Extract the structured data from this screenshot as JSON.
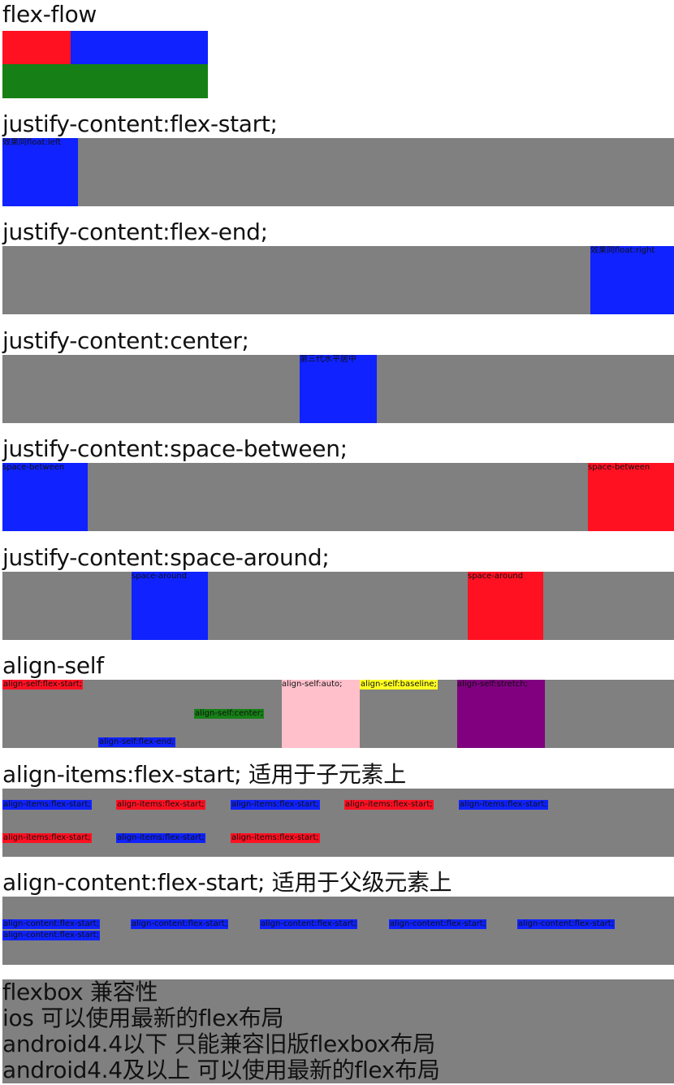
{
  "sections": {
    "flex_flow": {
      "title": "flex-flow"
    },
    "flex_start": {
      "title": "justify-content:flex-start;",
      "item": "效果同float:left"
    },
    "flex_end": {
      "title": "justify-content:flex-end;",
      "item": "效果同float:right"
    },
    "center": {
      "title": "justify-content:center;",
      "item": "第三代水平居中"
    },
    "space_between": {
      "title": "justify-content:space-between;",
      "items": [
        "space-between",
        "space-between"
      ]
    },
    "space_around": {
      "title": "justify-content:space-around;",
      "items": [
        "space-around",
        "space-around"
      ]
    },
    "align_self": {
      "title": "align-self",
      "items": [
        "align-self:flex-start;",
        "align-self:center;",
        "align-self:flex-end;",
        "align-self:auto;",
        "align-self:baseline;",
        "align-self:stretch;"
      ]
    },
    "align_items": {
      "title": "align-items:flex-start; 适用于子元素上",
      "item": "align-items:flex-start;"
    },
    "align_content": {
      "title": "align-content:flex-start; 适用于父级元素上",
      "item": "align-content:flex-start;"
    },
    "compat": {
      "lines": [
        "flexbox 兼容性",
        "ios 可以使用最新的flex布局",
        "android4.4以下 只能兼容旧版flexbox布局",
        "android4.4及以上 可以使用最新的flex布局"
      ]
    }
  },
  "colors": {
    "gray": "#808080",
    "blue": "#0f22ff",
    "red": "#ff1122",
    "green": "#168016",
    "pink": "#ffc0cb",
    "purple": "#800080",
    "yellow": "#ffff22"
  }
}
